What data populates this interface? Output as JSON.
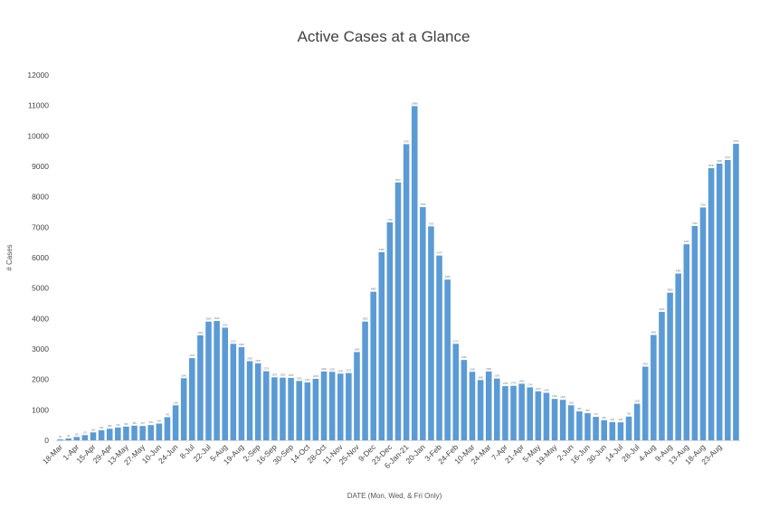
{
  "chart_data": {
    "type": "bar",
    "title": "Active Cases at a Glance",
    "xlabel": "DATE  (Mon, Wed, & Fri Only)",
    "ylabel": "# Cases",
    "ylim": [
      0,
      12000
    ],
    "yticks": [
      0,
      1000,
      2000,
      3000,
      4000,
      5000,
      6000,
      7000,
      8000,
      9000,
      10000,
      11000,
      12000
    ],
    "grid": false,
    "legend": "none",
    "bar_color": "#5b9bd5",
    "x_tick_labels": [
      "18-Mar",
      "1-Apr",
      "15-Apr",
      "29-Apr",
      "13-May",
      "27-May",
      "10-Jun",
      "24-Jun",
      "8-Jul",
      "22-Jul",
      "5-Aug",
      "19-Aug",
      "2-Sep",
      "16-Sep",
      "30-Sep",
      "14-Oct",
      "28-Oct",
      "11-Nov",
      "25-Nov",
      "9-Dec",
      "23-Dec",
      "6-Jan-21",
      "20-Jan",
      "3-Feb",
      "24-Feb",
      "10-Mar",
      "24-Mar",
      "7-Apr",
      "21-Apr",
      "5-May",
      "19-May",
      "2-Jun",
      "16-Jun",
      "30-Jun",
      "14-Jul",
      "28-Jul",
      "4-Aug",
      "9-Aug",
      "13-Aug",
      "18-Aug",
      "23-Aug"
    ],
    "values": [
      30,
      60,
      110,
      170,
      260,
      330,
      380,
      420,
      450,
      480,
      470,
      500,
      550,
      760,
      1150,
      2040,
      2700,
      3450,
      3900,
      3920,
      3700,
      3170,
      3060,
      2600,
      2530,
      2270,
      2070,
      2060,
      2050,
      1950,
      1900,
      2020,
      2260,
      2250,
      2190,
      2210,
      2900,
      3900,
      4880,
      6180,
      7160,
      8470,
      9730,
      10980,
      7660,
      7030,
      6070,
      5280,
      3170,
      2640,
      2250,
      1980,
      2260,
      2030,
      1780,
      1790,
      1860,
      1740,
      1610,
      1560,
      1360,
      1330,
      1150,
      950,
      890,
      770,
      660,
      600,
      590,
      780,
      1200,
      2420,
      3460,
      4220,
      4850,
      5480,
      6440,
      7040,
      7650,
      8940,
      9090,
      9210,
      9740
    ]
  }
}
